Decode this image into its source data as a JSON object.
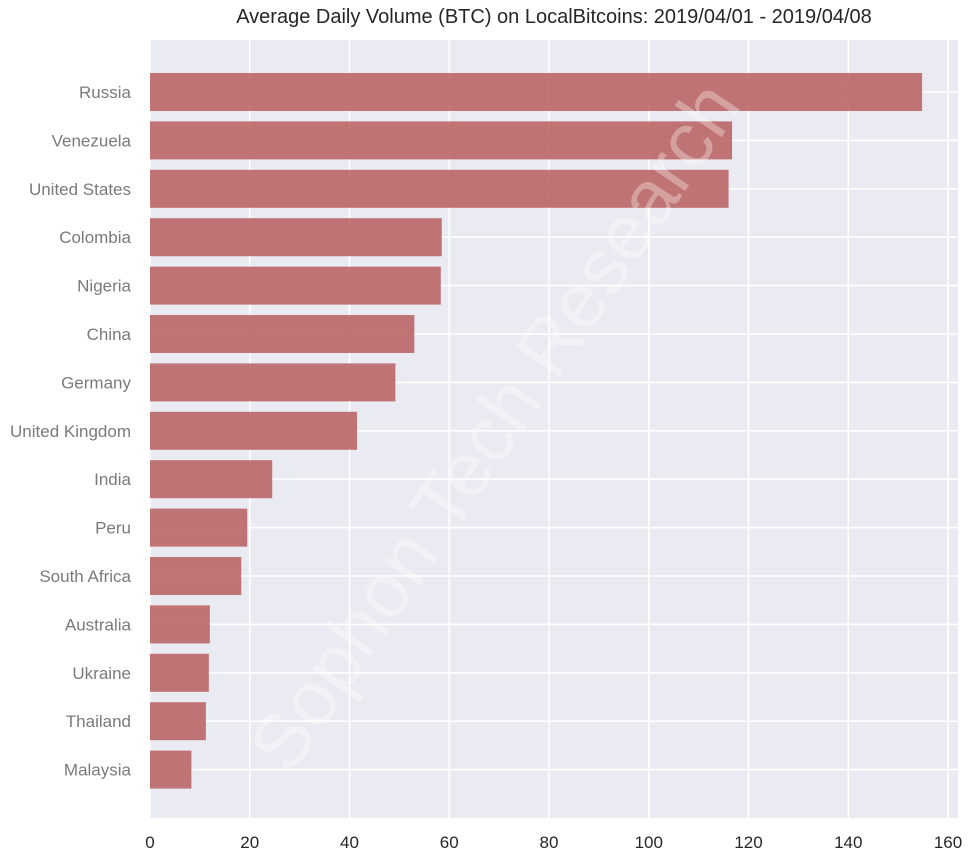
{
  "chart_data": {
    "type": "bar",
    "orientation": "horizontal",
    "title": "Average Daily Volume (BTC) on LocalBitcoins: 2019/04/01 - 2019/04/08",
    "xlabel": "",
    "ylabel": "",
    "xlim": [
      0,
      162
    ],
    "xticks": [
      0,
      20,
      40,
      60,
      80,
      100,
      120,
      140,
      160
    ],
    "grid": true,
    "categories": [
      "Russia",
      "Venezuela",
      "United States",
      "Colombia",
      "Nigeria",
      "China",
      "Germany",
      "United Kingdom",
      "India",
      "Peru",
      "South Africa",
      "Australia",
      "Ukraine",
      "Thailand",
      "Malaysia"
    ],
    "values": [
      154.8,
      116.7,
      116.0,
      58.5,
      58.3,
      53.0,
      49.2,
      41.5,
      24.5,
      19.5,
      18.3,
      12.0,
      11.8,
      11.2,
      8.3
    ],
    "bar_color": "#bb6666",
    "background_color": "#eaeaf2",
    "watermark": "Sophon Tech Research"
  }
}
